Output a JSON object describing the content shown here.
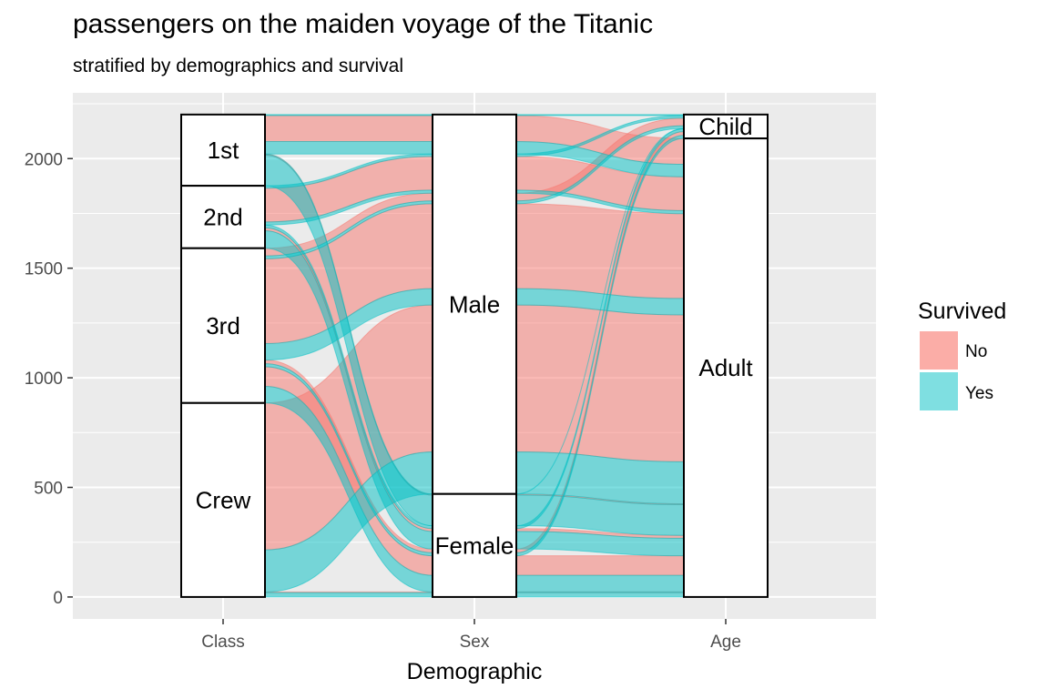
{
  "colors": {
    "no": "#F8766D",
    "yes": "#00BFC4",
    "panel": "#EBEBEB",
    "grid": "#FFFFFF"
  },
  "chart_data": {
    "type": "alluvial",
    "title": "passengers on the maiden voyage of the Titanic",
    "subtitle": "stratified by demographics and survival",
    "xlabel": "Demographic",
    "ylabel": "",
    "axes": [
      "Class",
      "Sex",
      "Age"
    ],
    "yticks": [
      0,
      500,
      1000,
      1500,
      2000
    ],
    "ylim": [
      -100,
      2300
    ],
    "grid": true,
    "legend": {
      "title": "Survived",
      "position": "right",
      "entries": [
        "No",
        "Yes"
      ]
    },
    "strata": {
      "Class": [
        {
          "label": "1st",
          "value": 325
        },
        {
          "label": "2nd",
          "value": 285
        },
        {
          "label": "3rd",
          "value": 706
        },
        {
          "label": "Crew",
          "value": 885
        }
      ],
      "Sex": [
        {
          "label": "Male",
          "value": 1731
        },
        {
          "label": "Female",
          "value": 470
        }
      ],
      "Age": [
        {
          "label": "Child",
          "value": 109
        },
        {
          "label": "Adult",
          "value": 2092
        }
      ]
    },
    "flows": [
      {
        "class": "1st",
        "sex": "Male",
        "age": "Child",
        "survived": "No",
        "value": 0
      },
      {
        "class": "2nd",
        "sex": "Male",
        "age": "Child",
        "survived": "No",
        "value": 0
      },
      {
        "class": "3rd",
        "sex": "Male",
        "age": "Child",
        "survived": "No",
        "value": 35
      },
      {
        "class": "Crew",
        "sex": "Male",
        "age": "Child",
        "survived": "No",
        "value": 0
      },
      {
        "class": "1st",
        "sex": "Female",
        "age": "Child",
        "survived": "No",
        "value": 0
      },
      {
        "class": "2nd",
        "sex": "Female",
        "age": "Child",
        "survived": "No",
        "value": 0
      },
      {
        "class": "3rd",
        "sex": "Female",
        "age": "Child",
        "survived": "No",
        "value": 17
      },
      {
        "class": "Crew",
        "sex": "Female",
        "age": "Child",
        "survived": "No",
        "value": 0
      },
      {
        "class": "1st",
        "sex": "Male",
        "age": "Adult",
        "survived": "No",
        "value": 118
      },
      {
        "class": "2nd",
        "sex": "Male",
        "age": "Adult",
        "survived": "No",
        "value": 154
      },
      {
        "class": "3rd",
        "sex": "Male",
        "age": "Adult",
        "survived": "No",
        "value": 387
      },
      {
        "class": "Crew",
        "sex": "Male",
        "age": "Adult",
        "survived": "No",
        "value": 670
      },
      {
        "class": "1st",
        "sex": "Female",
        "age": "Adult",
        "survived": "No",
        "value": 4
      },
      {
        "class": "2nd",
        "sex": "Female",
        "age": "Adult",
        "survived": "No",
        "value": 13
      },
      {
        "class": "3rd",
        "sex": "Female",
        "age": "Adult",
        "survived": "No",
        "value": 89
      },
      {
        "class": "Crew",
        "sex": "Female",
        "age": "Adult",
        "survived": "No",
        "value": 3
      },
      {
        "class": "1st",
        "sex": "Male",
        "age": "Child",
        "survived": "Yes",
        "value": 5
      },
      {
        "class": "2nd",
        "sex": "Male",
        "age": "Child",
        "survived": "Yes",
        "value": 11
      },
      {
        "class": "3rd",
        "sex": "Male",
        "age": "Child",
        "survived": "Yes",
        "value": 13
      },
      {
        "class": "Crew",
        "sex": "Male",
        "age": "Child",
        "survived": "Yes",
        "value": 0
      },
      {
        "class": "1st",
        "sex": "Female",
        "age": "Child",
        "survived": "Yes",
        "value": 1
      },
      {
        "class": "2nd",
        "sex": "Female",
        "age": "Child",
        "survived": "Yes",
        "value": 13
      },
      {
        "class": "3rd",
        "sex": "Female",
        "age": "Child",
        "survived": "Yes",
        "value": 14
      },
      {
        "class": "Crew",
        "sex": "Female",
        "age": "Child",
        "survived": "Yes",
        "value": 0
      },
      {
        "class": "1st",
        "sex": "Male",
        "age": "Adult",
        "survived": "Yes",
        "value": 57
      },
      {
        "class": "2nd",
        "sex": "Male",
        "age": "Adult",
        "survived": "Yes",
        "value": 14
      },
      {
        "class": "3rd",
        "sex": "Male",
        "age": "Adult",
        "survived": "Yes",
        "value": 75
      },
      {
        "class": "Crew",
        "sex": "Male",
        "age": "Adult",
        "survived": "Yes",
        "value": 192
      },
      {
        "class": "1st",
        "sex": "Female",
        "age": "Adult",
        "survived": "Yes",
        "value": 140
      },
      {
        "class": "2nd",
        "sex": "Female",
        "age": "Adult",
        "survived": "Yes",
        "value": 80
      },
      {
        "class": "3rd",
        "sex": "Female",
        "age": "Adult",
        "survived": "Yes",
        "value": 76
      },
      {
        "class": "Crew",
        "sex": "Female",
        "age": "Adult",
        "survived": "Yes",
        "value": 20
      }
    ]
  }
}
